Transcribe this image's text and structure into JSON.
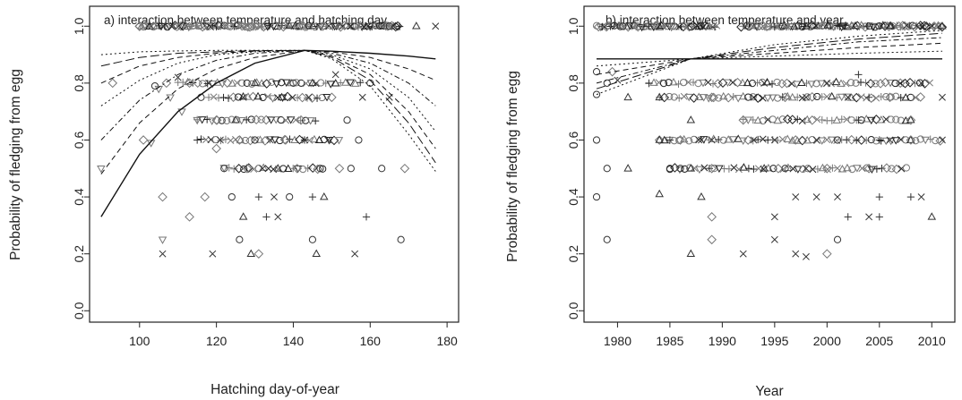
{
  "chart_data": [
    {
      "type": "scatter",
      "title": "a)   interaction between temperature and hatching day",
      "xlabel": "Hatching day-of-year",
      "ylabel": "Probability of fledging from egg",
      "xlim": [
        87,
        183
      ],
      "ylim": [
        -0.04,
        1.07
      ],
      "xticks": [
        100,
        120,
        140,
        160,
        180
      ],
      "yticks": [
        0.0,
        0.2,
        0.4,
        0.6,
        0.8,
        1.0
      ],
      "ytick_labels": [
        "0.0",
        "0.2",
        "0.4",
        "0.6",
        "0.8",
        "1.0"
      ],
      "grid": false,
      "curves": [
        {
          "style": "solid",
          "x": [
            90,
            100,
            110,
            120,
            130,
            143,
            150,
            160,
            170,
            177
          ],
          "y": [
            0.33,
            0.55,
            0.7,
            0.8,
            0.87,
            0.915,
            0.912,
            0.905,
            0.895,
            0.885
          ]
        },
        {
          "style": "dashed",
          "x": [
            90,
            100,
            110,
            120,
            130,
            143,
            150,
            160,
            170,
            177
          ],
          "y": [
            0.48,
            0.66,
            0.78,
            0.85,
            0.89,
            0.915,
            0.91,
            0.89,
            0.85,
            0.81
          ]
        },
        {
          "style": "dotdash",
          "x": [
            90,
            100,
            110,
            120,
            130,
            143,
            150,
            160,
            170,
            177
          ],
          "y": [
            0.6,
            0.74,
            0.83,
            0.88,
            0.905,
            0.915,
            0.905,
            0.87,
            0.8,
            0.72
          ]
        },
        {
          "style": "dotted",
          "x": [
            90,
            100,
            110,
            120,
            130,
            143,
            150,
            160,
            170,
            177
          ],
          "y": [
            0.72,
            0.81,
            0.87,
            0.9,
            0.91,
            0.915,
            0.9,
            0.85,
            0.75,
            0.63
          ]
        },
        {
          "style": "dashed",
          "x": [
            90,
            100,
            110,
            120,
            130,
            143,
            150,
            160,
            170,
            177
          ],
          "y": [
            0.8,
            0.86,
            0.89,
            0.905,
            0.912,
            0.915,
            0.895,
            0.83,
            0.7,
            0.57
          ]
        },
        {
          "style": "longdash",
          "x": [
            90,
            100,
            110,
            120,
            130,
            143,
            150,
            160,
            170,
            177
          ],
          "y": [
            0.86,
            0.89,
            0.905,
            0.91,
            0.914,
            0.915,
            0.89,
            0.81,
            0.66,
            0.52
          ]
        },
        {
          "style": "dotted",
          "x": [
            90,
            100,
            110,
            120,
            130,
            143,
            150,
            160,
            170,
            177
          ],
          "y": [
            0.9,
            0.91,
            0.913,
            0.915,
            0.915,
            0.915,
            0.885,
            0.79,
            0.62,
            0.49
          ]
        }
      ],
      "points": [
        [
          90,
          0.5,
          "tri_down"
        ],
        [
          93,
          0.8,
          "diamond"
        ],
        [
          100,
          1.0,
          "diamond"
        ],
        [
          101,
          0.6,
          "diamond"
        ],
        [
          103,
          0.59,
          "tri_down"
        ],
        [
          104,
          0.79,
          "circle"
        ],
        [
          105,
          0.78,
          "tri_down"
        ],
        [
          106,
          0.25,
          "tri_down"
        ],
        [
          106,
          0.2,
          "x"
        ],
        [
          106,
          0.4,
          "diamond"
        ],
        [
          107,
          0.8,
          "diamond"
        ],
        [
          108,
          0.75,
          "tri_down"
        ],
        [
          110,
          0.82,
          "x"
        ],
        [
          111,
          0.7,
          "tri_down"
        ],
        [
          113,
          0.33,
          "diamond"
        ],
        [
          113,
          0.8,
          "diamond"
        ],
        [
          115,
          0.67,
          "tri_down"
        ],
        [
          115,
          0.6,
          "plus"
        ],
        [
          116,
          0.75,
          "circle"
        ],
        [
          117,
          0.4,
          "diamond"
        ],
        [
          118,
          0.8,
          "x"
        ],
        [
          119,
          0.2,
          "x"
        ],
        [
          120,
          0.57,
          "diamond"
        ],
        [
          120,
          0.67,
          "diamond"
        ],
        [
          121,
          0.6,
          "x"
        ],
        [
          122,
          0.5,
          "circle"
        ],
        [
          124,
          0.4,
          "circle"
        ],
        [
          125,
          0.67,
          "triangle"
        ],
        [
          126,
          0.25,
          "circle"
        ],
        [
          126,
          0.6,
          "diamond"
        ],
        [
          127,
          0.75,
          "x"
        ],
        [
          127,
          0.33,
          "triangle"
        ],
        [
          128,
          0.5,
          "diamond"
        ],
        [
          129,
          0.2,
          "triangle"
        ],
        [
          130,
          0.6,
          "circle"
        ],
        [
          130,
          0.8,
          "triangle"
        ],
        [
          131,
          0.2,
          "diamond"
        ],
        [
          131,
          0.4,
          "plus"
        ],
        [
          132,
          0.5,
          "x"
        ],
        [
          133,
          0.33,
          "plus"
        ],
        [
          134,
          0.6,
          "x"
        ],
        [
          135,
          0.4,
          "x"
        ],
        [
          136,
          0.5,
          "triangle"
        ],
        [
          136,
          0.33,
          "x"
        ],
        [
          137,
          0.75,
          "triangle"
        ],
        [
          138,
          0.6,
          "diamond"
        ],
        [
          139,
          0.4,
          "circle"
        ],
        [
          140,
          0.8,
          "circle"
        ],
        [
          141,
          0.5,
          "diamond"
        ],
        [
          142,
          0.67,
          "diamond"
        ],
        [
          143,
          0.6,
          "x"
        ],
        [
          144,
          0.75,
          "x"
        ],
        [
          145,
          0.25,
          "circle"
        ],
        [
          145,
          0.8,
          "triangle"
        ],
        [
          145,
          0.4,
          "plus"
        ],
        [
          146,
          0.2,
          "triangle"
        ],
        [
          147,
          0.5,
          "circle"
        ],
        [
          148,
          0.4,
          "triangle"
        ],
        [
          149,
          0.6,
          "x"
        ],
        [
          150,
          0.75,
          "diamond"
        ],
        [
          151,
          0.83,
          "x"
        ],
        [
          152,
          0.5,
          "diamond"
        ],
        [
          154,
          0.67,
          "circle"
        ],
        [
          155,
          0.5,
          "circle"
        ],
        [
          156,
          0.2,
          "x"
        ],
        [
          157,
          0.6,
          "circle"
        ],
        [
          158,
          0.75,
          "x"
        ],
        [
          159,
          0.33,
          "plus"
        ],
        [
          160,
          0.8,
          "circle"
        ],
        [
          163,
          0.5,
          "circle"
        ],
        [
          165,
          0.75,
          "x"
        ],
        [
          168,
          0.25,
          "circle"
        ],
        [
          169,
          0.5,
          "diamond"
        ],
        [
          172,
          1.0,
          "triangle"
        ],
        [
          177,
          1.0,
          "x"
        ],
        [
          165,
          1.0,
          "circle"
        ],
        [
          160,
          1.0,
          "diamond"
        ],
        [
          155,
          1.0,
          "x"
        ]
      ],
      "band_ranges": [
        {
          "y": 1.0,
          "from": 100,
          "to": 168
        },
        {
          "y": 0.8,
          "from": 110,
          "to": 158
        },
        {
          "y": 0.75,
          "from": 118,
          "to": 150
        },
        {
          "y": 0.67,
          "from": 115,
          "to": 146
        },
        {
          "y": 0.6,
          "from": 116,
          "to": 152
        },
        {
          "y": 0.5,
          "from": 122,
          "to": 148
        }
      ]
    },
    {
      "type": "scatter",
      "title": "b)   interaction between temperature and year",
      "xlabel": "Year",
      "ylabel": "Probability of fledging from egg",
      "xlim": [
        1976.8,
        2012.2
      ],
      "ylim": [
        -0.04,
        1.07
      ],
      "xticks": [
        1980,
        1985,
        1990,
        1995,
        2000,
        2005,
        2010
      ],
      "yticks": [
        0.0,
        0.2,
        0.4,
        0.6,
        0.8,
        1.0
      ],
      "ytick_labels": [
        "0.0",
        "0.2",
        "0.4",
        "0.6",
        "0.8",
        "1.0"
      ],
      "grid": false,
      "curves": [
        {
          "style": "solid",
          "x": [
            1978,
            2011
          ],
          "y": [
            0.885,
            0.885
          ]
        },
        {
          "style": "dotted",
          "x": [
            1978,
            1987,
            1995,
            2003,
            2011
          ],
          "y": [
            0.86,
            0.885,
            0.895,
            0.905,
            0.912
          ]
        },
        {
          "style": "dashed",
          "x": [
            1978,
            1987,
            1995,
            2003,
            2011
          ],
          "y": [
            0.83,
            0.885,
            0.905,
            0.925,
            0.94
          ]
        },
        {
          "style": "dotdash",
          "x": [
            1978,
            1987,
            1995,
            2003,
            2011
          ],
          "y": [
            0.8,
            0.885,
            0.915,
            0.945,
            0.96
          ]
        },
        {
          "style": "longdash",
          "x": [
            1978,
            1987,
            1995,
            2003,
            2011
          ],
          "y": [
            0.78,
            0.885,
            0.925,
            0.955,
            0.975
          ]
        },
        {
          "style": "dotted",
          "x": [
            1978,
            1987,
            1995,
            2003,
            2011
          ],
          "y": [
            0.76,
            0.885,
            0.935,
            0.965,
            0.985
          ]
        }
      ],
      "points": [
        [
          1978,
          0.84,
          "circle"
        ],
        [
          1978,
          0.76,
          "circle"
        ],
        [
          1978,
          0.6,
          "circle"
        ],
        [
          1978,
          0.4,
          "circle"
        ],
        [
          1979,
          0.25,
          "circle"
        ],
        [
          1979,
          0.5,
          "circle"
        ],
        [
          1979,
          0.8,
          "circle"
        ],
        [
          1979.5,
          0.84,
          "diamond"
        ],
        [
          1980,
          0.81,
          "x"
        ],
        [
          1981,
          0.5,
          "triangle"
        ],
        [
          1981,
          0.75,
          "triangle"
        ],
        [
          1983,
          0.8,
          "plus"
        ],
        [
          1984,
          0.41,
          "triangle"
        ],
        [
          1984,
          0.6,
          "triangle"
        ],
        [
          1984,
          0.75,
          "triangle"
        ],
        [
          1985,
          0.5,
          "circle"
        ],
        [
          1985,
          0.6,
          "plus"
        ],
        [
          1986,
          0.6,
          "diamond"
        ],
        [
          1986,
          0.5,
          "circle"
        ],
        [
          1987,
          0.2,
          "triangle"
        ],
        [
          1987,
          0.5,
          "triangle"
        ],
        [
          1987,
          0.67,
          "triangle"
        ],
        [
          1988,
          0.4,
          "triangle"
        ],
        [
          1988,
          0.6,
          "x"
        ],
        [
          1989,
          0.25,
          "diamond"
        ],
        [
          1989,
          0.33,
          "diamond"
        ],
        [
          1989,
          0.5,
          "diamond"
        ],
        [
          1989,
          0.6,
          "x"
        ],
        [
          1989,
          0.75,
          "diamond"
        ],
        [
          1992,
          0.2,
          "x"
        ],
        [
          1992,
          0.67,
          "diamond"
        ],
        [
          1993,
          0.6,
          "x"
        ],
        [
          1993,
          0.75,
          "x"
        ],
        [
          1994,
          0.5,
          "triangle"
        ],
        [
          1994,
          0.8,
          "x"
        ],
        [
          1995,
          0.25,
          "x"
        ],
        [
          1995,
          0.33,
          "x"
        ],
        [
          1995,
          0.6,
          "x"
        ],
        [
          1996,
          0.5,
          "circle"
        ],
        [
          1996,
          0.75,
          "diamond"
        ],
        [
          1997,
          0.4,
          "x"
        ],
        [
          1997,
          0.6,
          "diamond"
        ],
        [
          1997,
          0.2,
          "x"
        ],
        [
          1998,
          0.5,
          "x"
        ],
        [
          1998,
          0.19,
          "x"
        ],
        [
          1998,
          0.75,
          "x"
        ],
        [
          1999,
          0.4,
          "x"
        ],
        [
          1999,
          0.6,
          "x"
        ],
        [
          2000,
          0.2,
          "diamond"
        ],
        [
          2000,
          0.5,
          "diamond"
        ],
        [
          2000,
          0.8,
          "x"
        ],
        [
          2001,
          0.25,
          "circle"
        ],
        [
          2001,
          0.4,
          "x"
        ],
        [
          2001,
          0.6,
          "circle"
        ],
        [
          2002,
          0.33,
          "plus"
        ],
        [
          2002,
          0.75,
          "x"
        ],
        [
          2003,
          0.67,
          "plus"
        ],
        [
          2003,
          0.83,
          "plus"
        ],
        [
          2004,
          0.33,
          "x"
        ],
        [
          2004,
          0.5,
          "diamond"
        ],
        [
          2004,
          0.75,
          "plus"
        ],
        [
          2005,
          0.33,
          "plus"
        ],
        [
          2005,
          0.6,
          "plus"
        ],
        [
          2005,
          0.4,
          "plus"
        ],
        [
          2006,
          0.6,
          "x"
        ],
        [
          2006,
          0.75,
          "diamond"
        ],
        [
          2007,
          0.8,
          "diamond"
        ],
        [
          2008,
          0.4,
          "plus"
        ],
        [
          2008,
          0.6,
          "diamond"
        ],
        [
          2008,
          0.67,
          "diamond"
        ],
        [
          2009,
          0.4,
          "x"
        ],
        [
          2009,
          0.8,
          "x"
        ],
        [
          2010,
          0.33,
          "triangle"
        ],
        [
          2011,
          0.6,
          "x"
        ],
        [
          2011,
          0.75,
          "x"
        ],
        [
          1980.5,
          1.0,
          "circle"
        ],
        [
          1983,
          1.0,
          "plus"
        ],
        [
          1988,
          1.0,
          "triangle"
        ],
        [
          2006,
          1.0,
          "triangle"
        ],
        [
          2011,
          1.0,
          "triangle"
        ]
      ],
      "band_ranges": [
        {
          "y": 1.0,
          "from": 1978,
          "to": 1989.5
        },
        {
          "y": 1.0,
          "from": 1991.8,
          "to": 2011
        },
        {
          "y": 0.8,
          "from": 1983,
          "to": 2010
        },
        {
          "y": 0.75,
          "from": 1984,
          "to": 2009
        },
        {
          "y": 0.67,
          "from": 1992,
          "to": 2008
        },
        {
          "y": 0.6,
          "from": 1984,
          "to": 2011
        },
        {
          "y": 0.5,
          "from": 1985,
          "to": 2008
        }
      ]
    }
  ]
}
